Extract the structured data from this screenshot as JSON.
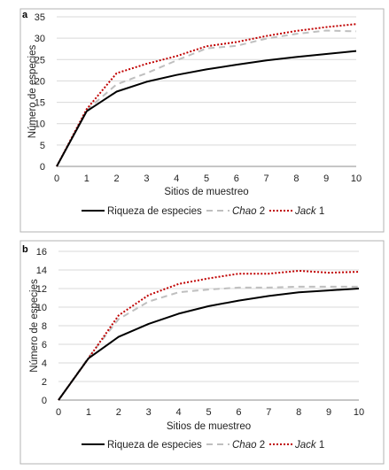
{
  "chart_data": [
    {
      "type": "line",
      "panel_label": "a",
      "xlabel": "Sitios de muestreo",
      "ylabel": "Número de especies",
      "x": [
        0,
        1,
        2,
        3,
        4,
        5,
        6,
        7,
        8,
        9,
        10
      ],
      "ylim": [
        0,
        35
      ],
      "yticks": [
        0,
        5,
        10,
        15,
        20,
        25,
        30,
        35
      ],
      "grid": true,
      "legend_position": "bottom",
      "series": [
        {
          "name": "Riqueza de especies",
          "name_parts": [
            {
              "text": "Riqueza de especies",
              "italic": false
            }
          ],
          "color": "#000000",
          "style": "solid",
          "values": [
            0,
            12.9,
            17.5,
            19.8,
            21.4,
            22.7,
            23.8,
            24.8,
            25.6,
            26.3,
            27.0
          ]
        },
        {
          "name": "Chao 2",
          "name_parts": [
            {
              "text": "Chao",
              "italic": true
            },
            {
              "text": " 2",
              "italic": false
            }
          ],
          "color": "#bfbfbf",
          "style": "dashed",
          "values": [
            0,
            13.2,
            19.2,
            21.8,
            24.8,
            27.6,
            28.2,
            29.9,
            31.0,
            31.8,
            31.6
          ]
        },
        {
          "name": "Jack 1",
          "name_parts": [
            {
              "text": "Jack",
              "italic": true
            },
            {
              "text": " 1",
              "italic": false
            }
          ],
          "color": "#c00000",
          "style": "dotted",
          "values": [
            0,
            13.4,
            21.8,
            24.0,
            25.8,
            28.1,
            29.1,
            30.5,
            31.7,
            32.6,
            33.3
          ]
        }
      ]
    },
    {
      "type": "line",
      "panel_label": "b",
      "xlabel": "Sitios de muestreo",
      "ylabel": "Número de especies",
      "x": [
        0,
        1,
        2,
        3,
        4,
        5,
        6,
        7,
        8,
        9,
        10
      ],
      "ylim": [
        0,
        16
      ],
      "yticks": [
        0,
        2,
        4,
        6,
        8,
        10,
        12,
        14,
        16
      ],
      "grid": true,
      "legend_position": "bottom",
      "series": [
        {
          "name": "Riqueza de especies",
          "name_parts": [
            {
              "text": "Riqueza de especies",
              "italic": false
            }
          ],
          "color": "#000000",
          "style": "solid",
          "values": [
            0,
            4.5,
            6.8,
            8.2,
            9.3,
            10.1,
            10.7,
            11.2,
            11.6,
            11.8,
            12.0
          ]
        },
        {
          "name": "Chao 2",
          "name_parts": [
            {
              "text": "Chao",
              "italic": true
            },
            {
              "text": " 2",
              "italic": false
            }
          ],
          "color": "#bfbfbf",
          "style": "dashed",
          "values": [
            0,
            4.6,
            8.7,
            10.6,
            11.6,
            11.9,
            12.1,
            12.1,
            12.2,
            12.2,
            12.2
          ]
        },
        {
          "name": "Jack 1",
          "name_parts": [
            {
              "text": "Jack",
              "italic": true
            },
            {
              "text": " 1",
              "italic": false
            }
          ],
          "color": "#c00000",
          "style": "dotted",
          "values": [
            0,
            4.5,
            9.1,
            11.3,
            12.5,
            13.1,
            13.6,
            13.6,
            13.9,
            13.7,
            13.8
          ]
        }
      ]
    }
  ]
}
